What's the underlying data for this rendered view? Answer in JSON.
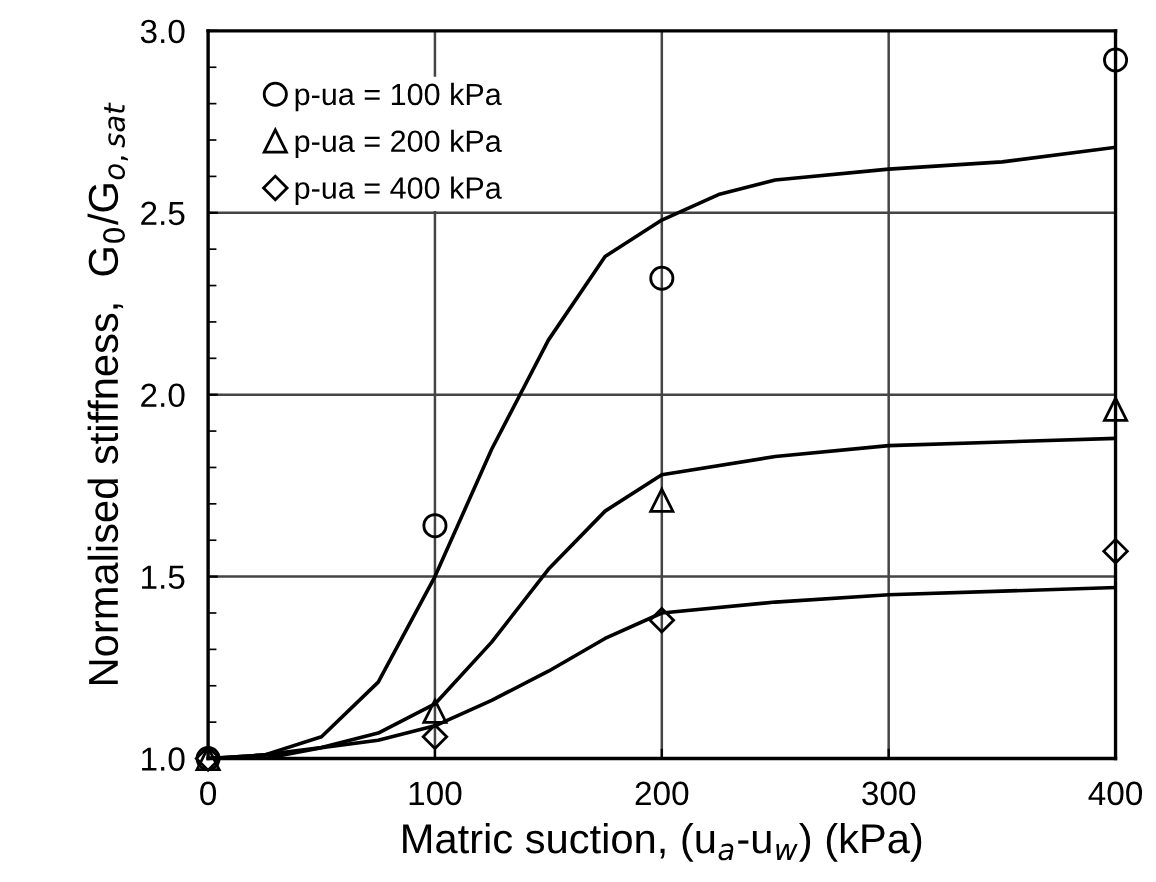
{
  "chart_data": {
    "type": "scatter",
    "xlabel": "Matric suction, (u$_{a}$-u$_{w}$) (kPa)",
    "ylabel": "Normalised stiffness,  G$_{0}$/G$_{o,sat}$",
    "xlim": [
      0,
      400
    ],
    "xticks": [
      0,
      100,
      200,
      300,
      400
    ],
    "ylim": [
      1.0,
      3.0
    ],
    "yticks": [
      {
        "value": 1.0,
        "label": "1.0"
      },
      {
        "value": 1.5,
        "label": "1.5"
      },
      {
        "value": 2.0,
        "label": "2.0"
      },
      {
        "value": 2.5,
        "label": "2.5"
      },
      {
        "value": 3.0,
        "label": "3.0"
      }
    ],
    "grid": true,
    "legend": "top left",
    "series": [
      {
        "name": "p-ua = 100 kPa",
        "marker": "circle",
        "color": "#000000",
        "x": [
          0,
          100,
          200,
          400
        ],
        "values": [
          1.0,
          1.64,
          2.32,
          2.92
        ]
      },
      {
        "name": "p-ua = 200 kPa",
        "marker": "triangle",
        "color": "#000000",
        "x": [
          0,
          100,
          200,
          400
        ],
        "values": [
          1.0,
          1.13,
          1.71,
          1.96
        ]
      },
      {
        "name": "p-ua = 400 kPa",
        "marker": "diamond",
        "color": "#000000",
        "x": [
          0,
          100,
          200,
          400
        ],
        "values": [
          1.0,
          1.06,
          1.38,
          1.57
        ]
      },
      {
        "type": "line",
        "marker": "none",
        "line_style": "solid",
        "color": "#000000",
        "x": [
          0,
          25,
          50,
          75,
          100,
          125,
          150,
          175,
          200,
          225,
          250,
          300,
          350,
          400
        ],
        "values": [
          1.0,
          1.01,
          1.06,
          1.21,
          1.5,
          1.85,
          2.15,
          2.38,
          2.48,
          2.55,
          2.59,
          2.62,
          2.64,
          2.68
        ]
      },
      {
        "type": "line",
        "marker": "none",
        "line_style": "solid",
        "color": "#000000",
        "x": [
          0,
          25,
          50,
          75,
          100,
          125,
          150,
          175,
          200,
          250,
          300,
          350,
          400
        ],
        "values": [
          1.0,
          1.01,
          1.03,
          1.07,
          1.15,
          1.32,
          1.52,
          1.68,
          1.78,
          1.83,
          1.86,
          1.87,
          1.88
        ]
      },
      {
        "type": "line",
        "marker": "none",
        "line_style": "solid",
        "color": "#000000",
        "x": [
          0,
          25,
          50,
          75,
          100,
          125,
          150,
          175,
          200,
          250,
          300,
          350,
          400
        ],
        "values": [
          1.0,
          1.0,
          1.03,
          1.05,
          1.09,
          1.16,
          1.24,
          1.33,
          1.4,
          1.43,
          1.45,
          1.46,
          1.47
        ]
      }
    ]
  }
}
